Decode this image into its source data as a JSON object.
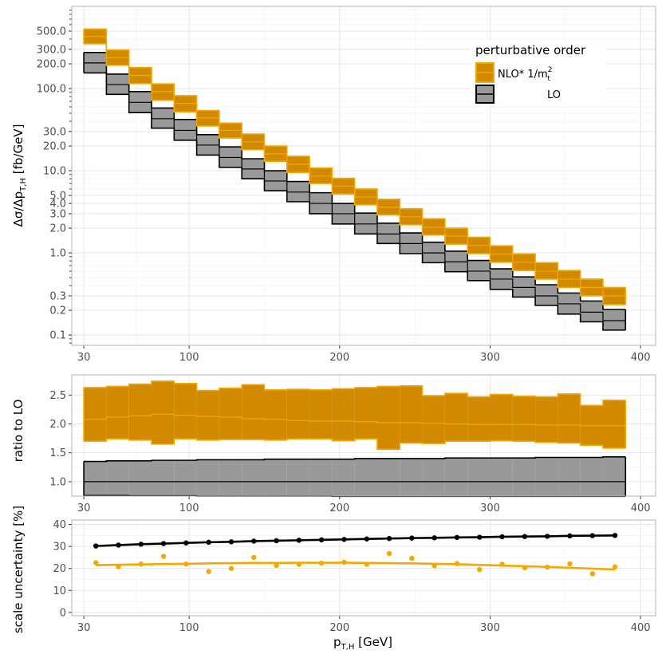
{
  "chart_data": [
    {
      "panel": "distribution",
      "type": "step-band",
      "ylabel": "Δσ/Δp_T,H [fb/GeV]",
      "ylabel_main": "Δσ/Δp",
      "ylabel_sub": "T,H",
      "ylabel_unit": " [fb/GeV]",
      "yscale": "log",
      "ylim": [
        0.075,
        1000
      ],
      "xlim": [
        22,
        410
      ],
      "x_ticks": [
        30,
        100,
        200,
        300,
        400
      ],
      "y_ticks": [
        0.1,
        0.2,
        0.3,
        1.0,
        2.0,
        3.0,
        4.0,
        5.0,
        10.0,
        20.0,
        30.0,
        100.0,
        200.0,
        300.0,
        500.0
      ],
      "y_tick_labels": [
        "0.1",
        "0.2",
        "0.3",
        "1.0",
        "2.0",
        "3.0",
        "4.0",
        "5.0",
        "10.0",
        "20.0",
        "30.0",
        "100.0",
        "200.0",
        "300.0",
        "500.0"
      ],
      "bin_edges": [
        30,
        45,
        60,
        75,
        90,
        105,
        120,
        135,
        150,
        165,
        180,
        195,
        210,
        225,
        240,
        255,
        270,
        285,
        300,
        315,
        330,
        345,
        360,
        375,
        390
      ],
      "series": [
        {
          "name": "LO",
          "fill": "#999999",
          "stroke": "#000000",
          "central": [
            205,
            112,
            68,
            43,
            31,
            20.5,
            14.5,
            10.5,
            7.5,
            5.5,
            4.0,
            3.0,
            2.25,
            1.7,
            1.3,
            1.0,
            0.78,
            0.6,
            0.48,
            0.38,
            0.3,
            0.24,
            0.19,
            0.15
          ],
          "low": [
            155,
            85,
            51,
            33,
            23.5,
            15.5,
            11,
            8,
            5.7,
            4.2,
            3.0,
            2.25,
            1.7,
            1.3,
            0.98,
            0.76,
            0.59,
            0.46,
            0.36,
            0.29,
            0.23,
            0.18,
            0.145,
            0.115
          ],
          "high": [
            275,
            150,
            92,
            58,
            42,
            27.5,
            19.5,
            14,
            10,
            7.4,
            5.4,
            4.0,
            3.05,
            2.3,
            1.75,
            1.35,
            1.05,
            0.81,
            0.64,
            0.51,
            0.41,
            0.325,
            0.26,
            0.205
          ]
        },
        {
          "name": "NLO* 1/m_t^2",
          "fill": "#D18A00",
          "stroke": "#F5A800",
          "central": [
            430,
            238,
            145,
            92,
            66,
            44,
            31,
            22.5,
            16,
            12,
            8.6,
            6.5,
            4.8,
            3.6,
            2.75,
            2.05,
            1.6,
            1.23,
            0.97,
            0.77,
            0.6,
            0.48,
            0.38,
            0.3
          ],
          "low": [
            350,
            192,
            115,
            72,
            52,
            35,
            25,
            18,
            13,
            9.5,
            7.0,
            5.2,
            3.85,
            2.9,
            2.2,
            1.65,
            1.28,
            0.98,
            0.77,
            0.61,
            0.48,
            0.38,
            0.3,
            0.235
          ],
          "high": [
            530,
            295,
            180,
            114,
            82,
            54,
            38,
            28,
            20,
            15,
            10.8,
            8.1,
            6.0,
            4.5,
            3.45,
            2.6,
            2.0,
            1.55,
            1.22,
            0.97,
            0.76,
            0.61,
            0.48,
            0.38
          ]
        }
      ],
      "legend": {
        "title": "perturbative order",
        "position": "top-right",
        "entries": [
          {
            "label": "NLO* 1/m",
            "label_sub": "t",
            "label_sup": "2",
            "fill": "#D18A00",
            "stroke": "#F5A800"
          },
          {
            "label": "LO",
            "fill": "#999999",
            "stroke": "#000000"
          }
        ]
      }
    },
    {
      "panel": "ratio",
      "type": "step-band",
      "ylabel": "ratio to LO",
      "ylim": [
        0.75,
        2.85
      ],
      "xlim": [
        22,
        410
      ],
      "x_ticks": [
        30,
        100,
        200,
        300,
        400
      ],
      "y_ticks": [
        1.0,
        1.5,
        2.0,
        2.5
      ],
      "y_tick_labels": [
        "1.0",
        "1.5",
        "2.0",
        "2.5"
      ],
      "bin_edges": [
        30,
        45,
        60,
        75,
        90,
        105,
        120,
        135,
        150,
        165,
        180,
        195,
        210,
        225,
        240,
        255,
        270,
        285,
        300,
        315,
        330,
        345,
        360,
        375,
        390
      ],
      "series": [
        {
          "name": "LO",
          "fill": "#999999",
          "stroke": "#000000",
          "central": [
            1,
            1,
            1,
            1,
            1,
            1,
            1,
            1,
            1,
            1,
            1,
            1,
            1,
            1,
            1,
            1,
            1,
            1,
            1,
            1,
            1,
            1,
            1,
            1
          ],
          "low": [
            0.76,
            0.76,
            0.755,
            0.755,
            0.755,
            0.75,
            0.75,
            0.75,
            0.75,
            0.75,
            0.75,
            0.745,
            0.745,
            0.745,
            0.745,
            0.745,
            0.745,
            0.745,
            0.745,
            0.745,
            0.745,
            0.745,
            0.745,
            0.745
          ],
          "high": [
            1.35,
            1.36,
            1.36,
            1.37,
            1.37,
            1.38,
            1.38,
            1.38,
            1.39,
            1.39,
            1.39,
            1.39,
            1.4,
            1.4,
            1.4,
            1.4,
            1.41,
            1.41,
            1.41,
            1.41,
            1.42,
            1.42,
            1.42,
            1.43
          ]
        },
        {
          "name": "NLO* 1/m_t^2",
          "fill": "#D18A00",
          "stroke": "#F5A800",
          "central": [
            2.08,
            2.12,
            2.14,
            2.17,
            2.15,
            2.13,
            2.12,
            2.09,
            2.08,
            2.06,
            2.05,
            2.05,
            2.04,
            2.02,
            2.02,
            2.01,
            2.0,
            1.99,
            1.99,
            1.99,
            1.98,
            1.98,
            1.97,
            1.97
          ],
          "low": [
            1.7,
            1.74,
            1.72,
            1.65,
            1.74,
            1.72,
            1.73,
            1.73,
            1.72,
            1.74,
            1.74,
            1.71,
            1.74,
            1.56,
            1.67,
            1.66,
            1.7,
            1.7,
            1.71,
            1.7,
            1.68,
            1.67,
            1.63,
            1.58
          ],
          "high": [
            2.63,
            2.65,
            2.69,
            2.74,
            2.7,
            2.58,
            2.62,
            2.68,
            2.59,
            2.6,
            2.59,
            2.61,
            2.63,
            2.65,
            2.66,
            2.49,
            2.53,
            2.47,
            2.51,
            2.48,
            2.47,
            2.52,
            2.32,
            2.41
          ]
        }
      ]
    },
    {
      "panel": "uncertainty",
      "type": "scatter",
      "ylabel": "scale uncertainty [%]",
      "xlabel": "p_T,H [GeV]",
      "xlabel_main": "p",
      "xlabel_sub": "T,H",
      "xlabel_unit": " [GeV]",
      "ylim": [
        -1.5,
        42
      ],
      "xlim": [
        22,
        410
      ],
      "x_ticks": [
        30,
        100,
        200,
        300,
        400
      ],
      "x_tick_labels": [
        "30",
        "100",
        "200",
        "300",
        "400"
      ],
      "y_ticks": [
        0,
        10,
        20,
        30,
        40
      ],
      "y_tick_labels": [
        "0",
        "10",
        "20",
        "30",
        "40"
      ],
      "series": [
        {
          "name": "LO",
          "color": "#000000",
          "x": [
            38,
            53,
            68,
            83,
            98,
            113,
            128,
            143,
            158,
            173,
            188,
            203,
            218,
            233,
            248,
            263,
            278,
            293,
            308,
            323,
            338,
            353,
            368,
            383
          ],
          "y": [
            30.2,
            30.6,
            31.0,
            31.3,
            31.6,
            31.9,
            32.1,
            32.4,
            32.6,
            32.8,
            33.0,
            33.2,
            33.4,
            33.6,
            33.8,
            33.9,
            34.1,
            34.2,
            34.4,
            34.5,
            34.6,
            34.8,
            34.9,
            35.0
          ],
          "fit_y": [
            30.2,
            30.6,
            31.0,
            31.3,
            31.6,
            31.9,
            32.1,
            32.4,
            32.6,
            32.8,
            33.0,
            33.2,
            33.4,
            33.6,
            33.8,
            33.9,
            34.1,
            34.2,
            34.4,
            34.5,
            34.6,
            34.8,
            34.9,
            35.0
          ]
        },
        {
          "name": "NLO* 1/m_t^2",
          "color": "#F5A800",
          "x": [
            38,
            53,
            68,
            83,
            98,
            113,
            128,
            143,
            158,
            173,
            188,
            203,
            218,
            233,
            248,
            263,
            278,
            293,
            308,
            323,
            338,
            353,
            368,
            383
          ],
          "y": [
            22.6,
            20.8,
            22.0,
            25.5,
            22.0,
            18.6,
            20.0,
            25.0,
            21.4,
            21.9,
            22.4,
            22.8,
            21.9,
            26.8,
            24.6,
            21.2,
            22.2,
            19.5,
            21.9,
            20.3,
            20.6,
            22.1,
            17.6,
            20.7
          ],
          "fit_y": [
            21.5,
            21.7,
            21.8,
            22.0,
            22.1,
            22.3,
            22.4,
            22.5,
            22.5,
            22.6,
            22.6,
            22.6,
            22.5,
            22.4,
            22.3,
            22.1,
            21.9,
            21.6,
            21.3,
            21.0,
            20.7,
            20.3,
            19.9,
            19.5
          ]
        }
      ]
    }
  ]
}
